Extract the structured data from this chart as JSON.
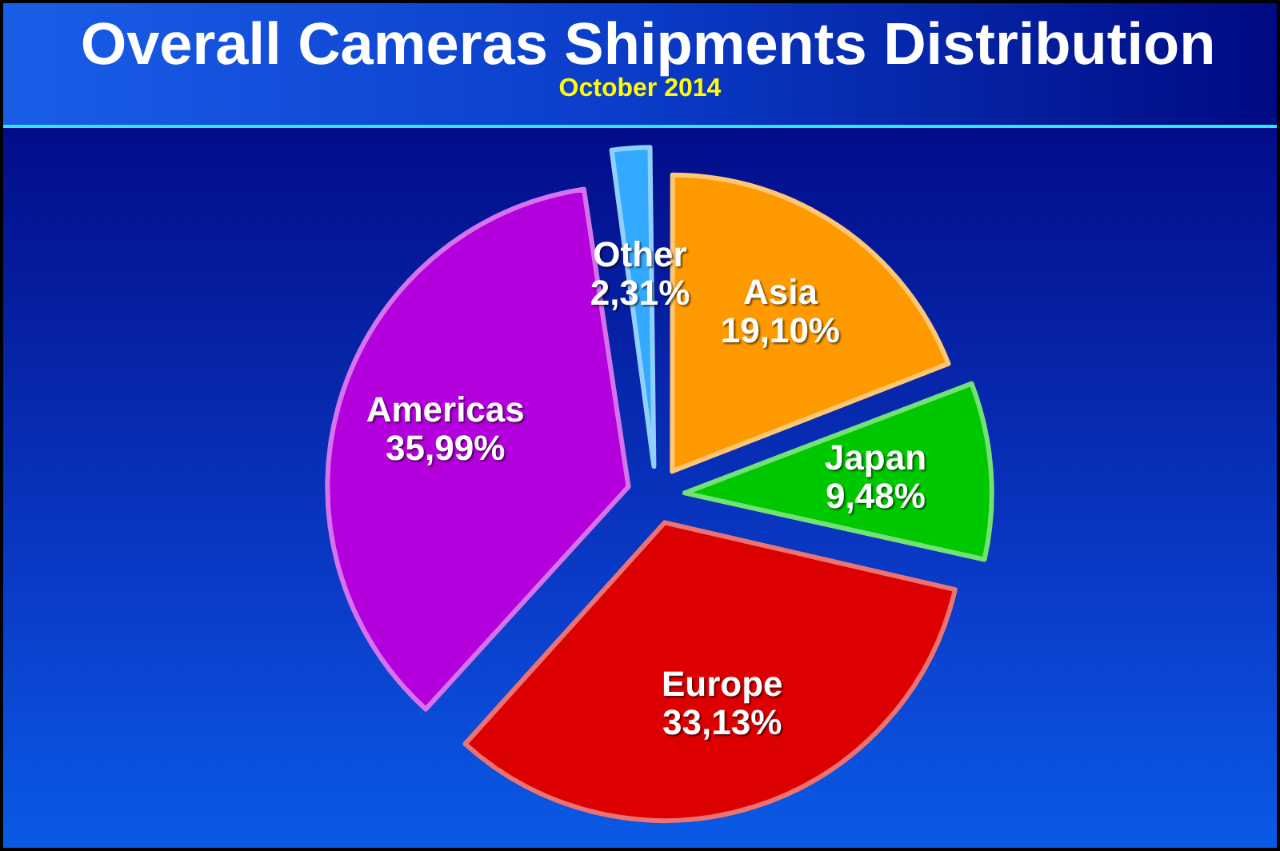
{
  "chart_data": {
    "type": "pie",
    "title": "Overall Cameras Shipments Distribution",
    "subtitle": "October 2014",
    "categories": [
      "Asia",
      "Japan",
      "Europe",
      "Americas",
      "Other"
    ],
    "values": [
      19.1,
      9.48,
      33.13,
      35.99,
      2.31
    ],
    "colors": [
      "#ff9900",
      "#00c800",
      "#dd0000",
      "#b400dc",
      "#33aaff"
    ],
    "value_labels": [
      "19,10%",
      "9,48%",
      "33,13%",
      "35,99%",
      "2,31%"
    ]
  }
}
